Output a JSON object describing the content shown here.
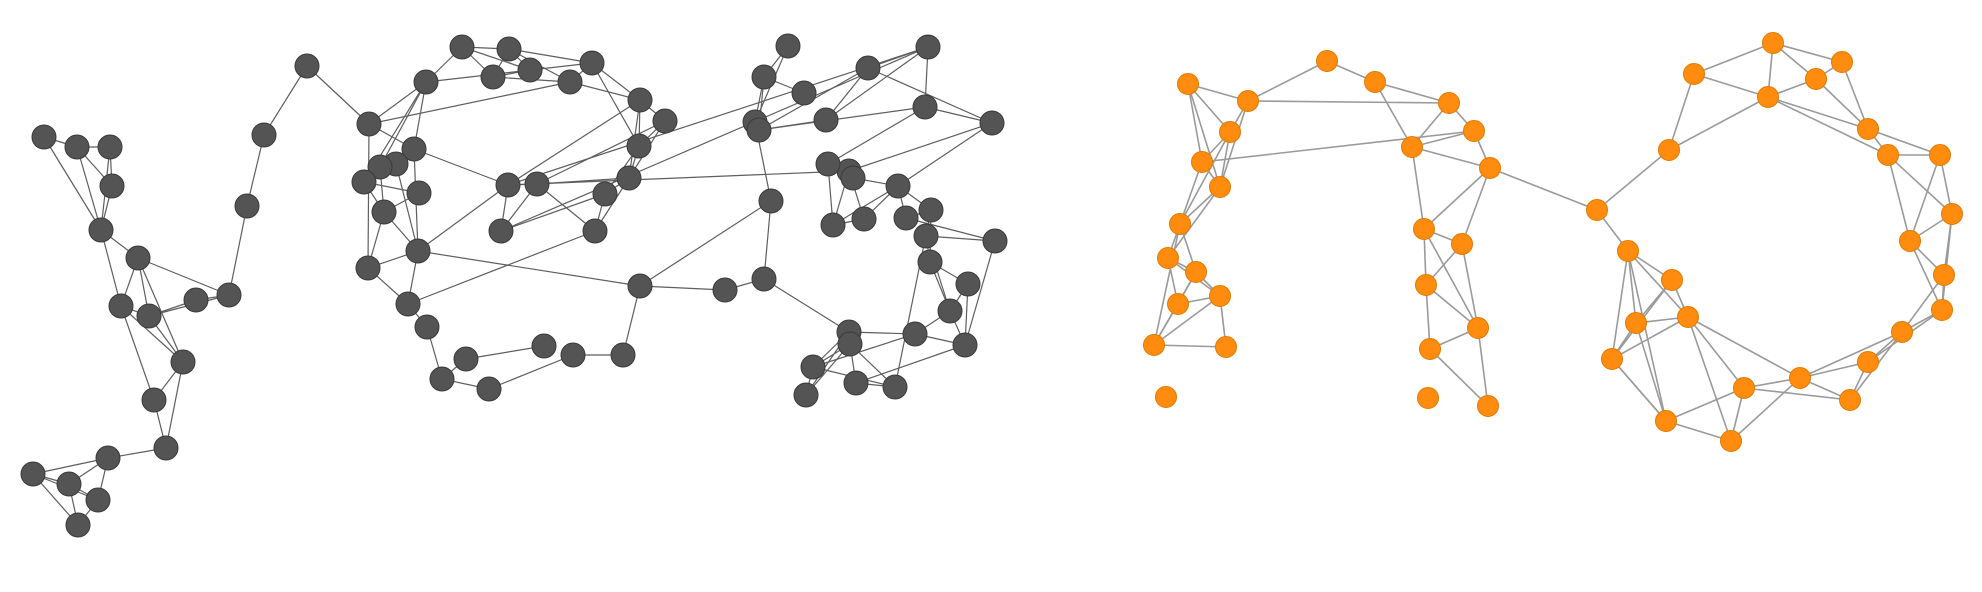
{
  "colors": {
    "background": "#ffffff",
    "left_node_fill": "#545454",
    "left_node_stroke": "#3a3a3a",
    "left_edge": "#5e5e5e",
    "right_node_fill": "#ff8c0f",
    "right_node_stroke": "#e07a00",
    "right_edge": "#9a9a9a"
  },
  "graphs": [
    {
      "name": "left-graph",
      "style": "dark",
      "node_count": 89
    },
    {
      "name": "right-graph",
      "style": "orange",
      "node_count": 50
    }
  ]
}
